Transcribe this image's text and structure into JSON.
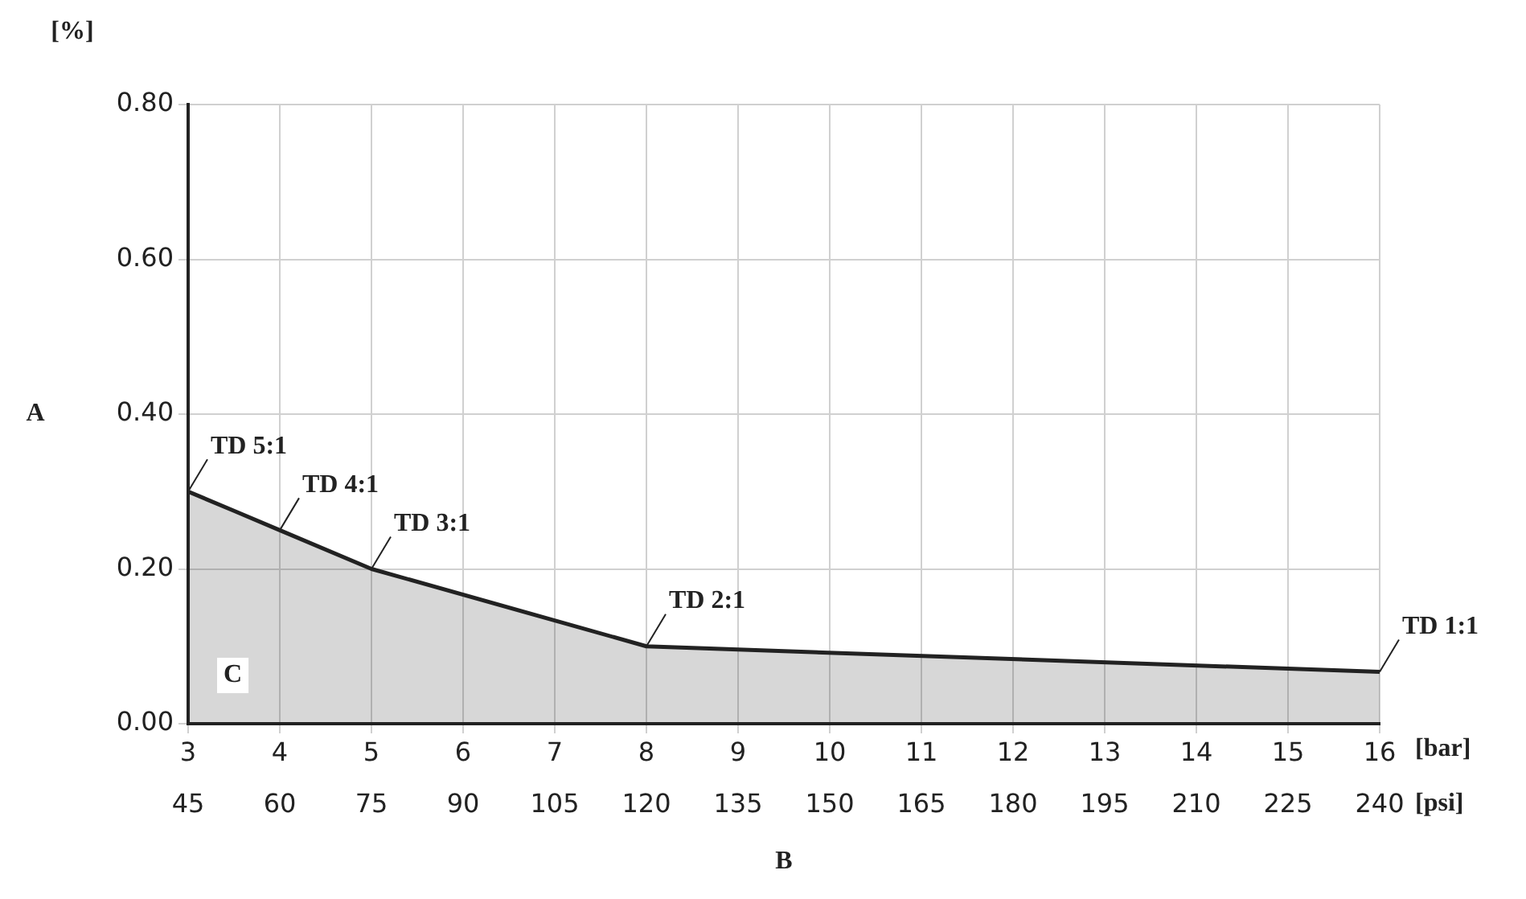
{
  "chart_data": {
    "type": "area",
    "ylabel": "[%]",
    "xlabel": "[bar]",
    "x2label": "[psi]",
    "x": [
      3,
      3.5,
      4,
      5,
      8,
      16
    ],
    "series": [
      {
        "color": "#222222",
        "values": [
          0.3,
          0.275,
          0.25,
          0.2,
          0.1,
          0.067
        ]
      }
    ],
    "xlim": [
      3,
      16
    ],
    "xticks": [
      3,
      4,
      5,
      6,
      7,
      8,
      9,
      10,
      11,
      12,
      13,
      14,
      15,
      16
    ],
    "x2lim": [
      45,
      240
    ],
    "x2ticks": [
      45,
      60,
      75,
      90,
      105,
      120,
      135,
      150,
      165,
      180,
      195,
      210,
      225,
      240
    ],
    "ylim": [
      0,
      0.8
    ],
    "yticks": [
      {
        "value": 0,
        "label": "0.00"
      },
      {
        "value": 0.2,
        "label": "0.20"
      },
      {
        "value": 0.4,
        "label": "0.40"
      },
      {
        "value": 0.6,
        "label": "0.60"
      },
      {
        "value": 0.8,
        "label": "0.80"
      }
    ],
    "grid": true,
    "legend": false,
    "annotations": [
      {
        "text": "TD 5:1",
        "x": 3,
        "y": 0.3
      },
      {
        "text": "TD 4:1",
        "x": 4,
        "y": 0.25
      },
      {
        "text": "TD 3:1",
        "x": 5,
        "y": 0.2
      },
      {
        "text": "TD 2:1",
        "x": 8,
        "y": 0.1
      },
      {
        "text": "TD 1:1",
        "x": 16,
        "y": 0.067
      },
      "A",
      "B",
      "C"
    ]
  }
}
